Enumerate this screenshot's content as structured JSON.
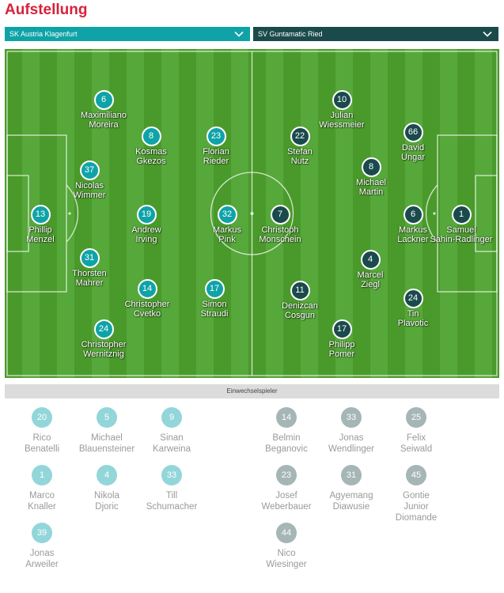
{
  "title": "Aufstellung",
  "home_team": "SK Austria Klagenfurt",
  "away_team": "SV Guntamatic Ried",
  "bench_label": "Einwechselspieler",
  "colors": {
    "accent": "#d8213a",
    "home": "#0fa3a8",
    "away": "#1b4a4d",
    "home_sub": "#93d6da",
    "away_sub": "#a6b5b6",
    "pitch": "#4a9a2b"
  },
  "home_starters": [
    {
      "number": "13",
      "name": "Phillip\nMenzel"
    },
    {
      "number": "37",
      "name": "Nicolas\nWimmer"
    },
    {
      "number": "31",
      "name": "Thorsten\nMahrer"
    },
    {
      "number": "6",
      "name": "Maximiliano\nMoreira"
    },
    {
      "number": "24",
      "name": "Christopher\nWernitznig"
    },
    {
      "number": "8",
      "name": "Kosmas\nGkezos"
    },
    {
      "number": "19",
      "name": "Andrew\nIrving"
    },
    {
      "number": "14",
      "name": "Christopher\nCvetko"
    },
    {
      "number": "23",
      "name": "Florian\nRieder"
    },
    {
      "number": "32",
      "name": "Markus\nPink"
    },
    {
      "number": "17",
      "name": "Simon\nStraudi"
    }
  ],
  "away_starters": [
    {
      "number": "7",
      "name": "Christoph\nMonschein"
    },
    {
      "number": "22",
      "name": "Stefan\nNutz"
    },
    {
      "number": "11",
      "name": "Denizcan\nCosgun"
    },
    {
      "number": "10",
      "name": "Julian\nWiessmeier"
    },
    {
      "number": "8",
      "name": "Michael\nMartin"
    },
    {
      "number": "4",
      "name": "Marcel\nZiegl"
    },
    {
      "number": "17",
      "name": "Philipp\nPomer"
    },
    {
      "number": "66",
      "name": "David\nUngar"
    },
    {
      "number": "6",
      "name": "Markus\nLackner"
    },
    {
      "number": "24",
      "name": "Tin\nPlavotic"
    },
    {
      "number": "1",
      "name": "Samuel\nSahin-Radlinger"
    }
  ],
  "home_subs": [
    {
      "number": "20",
      "name": "Rico\nBenatelli"
    },
    {
      "number": "5",
      "name": "Michael\nBlauensteiner"
    },
    {
      "number": "9",
      "name": "Sinan\nKarweina"
    },
    {
      "number": "1",
      "name": "Marco\nKnaller"
    },
    {
      "number": "4",
      "name": "Nikola\nDjoric"
    },
    {
      "number": "33",
      "name": "Till\nSchumacher"
    },
    {
      "number": "39",
      "name": "Jonas\nArweiler"
    }
  ],
  "away_subs": [
    {
      "number": "14",
      "name": "Belmin\nBeganovic"
    },
    {
      "number": "33",
      "name": "Jonas\nWendlinger"
    },
    {
      "number": "25",
      "name": "Felix\nSeiwald"
    },
    {
      "number": "23",
      "name": "Josef\nWeberbauer"
    },
    {
      "number": "31",
      "name": "Agyemang\nDiawusie"
    },
    {
      "number": "45",
      "name": "Gontie\nJunior\nDiomande"
    },
    {
      "number": "44",
      "name": "Nico\nWiesinger"
    }
  ]
}
